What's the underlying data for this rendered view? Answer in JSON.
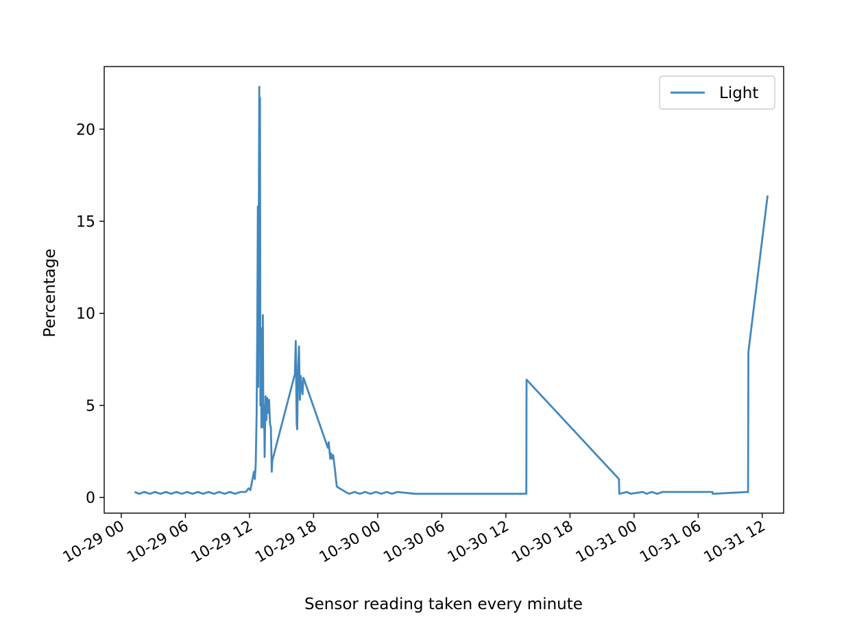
{
  "chart_data": {
    "type": "line",
    "title": "",
    "xlabel": "Sensor reading taken every minute",
    "ylabel": "Percentage",
    "xlim": [
      "2023-10-28 22:24",
      "2023-10-31 14:00"
    ],
    "ylim": [
      -0.85,
      23.4
    ],
    "grid": false,
    "legend": {
      "position": "top-right"
    },
    "xticks": [
      {
        "x": "2023-10-29 00:00",
        "label": "10-29 00"
      },
      {
        "x": "2023-10-29 06:00",
        "label": "10-29 06"
      },
      {
        "x": "2023-10-29 12:00",
        "label": "10-29 12"
      },
      {
        "x": "2023-10-29 18:00",
        "label": "10-29 18"
      },
      {
        "x": "2023-10-30 00:00",
        "label": "10-30 00"
      },
      {
        "x": "2023-10-30 06:00",
        "label": "10-30 06"
      },
      {
        "x": "2023-10-30 12:00",
        "label": "10-30 12"
      },
      {
        "x": "2023-10-30 18:00",
        "label": "10-30 18"
      },
      {
        "x": "2023-10-31 00:00",
        "label": "10-31 00"
      },
      {
        "x": "2023-10-31 06:00",
        "label": "10-31 06"
      },
      {
        "x": "2023-10-31 12:00",
        "label": "10-31 12"
      }
    ],
    "yticks": [
      {
        "y": 0,
        "label": "0"
      },
      {
        "y": 5,
        "label": "5"
      },
      {
        "y": 10,
        "label": "10"
      },
      {
        "y": 15,
        "label": "15"
      },
      {
        "y": 20,
        "label": "20"
      }
    ],
    "series": [
      {
        "name": "Light",
        "color": "#4287bd",
        "points": [
          [
            "2023-10-29 01:15",
            0.3
          ],
          [
            "2023-10-29 01:40",
            0.2
          ],
          [
            "2023-10-29 02:10",
            0.3
          ],
          [
            "2023-10-29 02:40",
            0.2
          ],
          [
            "2023-10-29 03:10",
            0.3
          ],
          [
            "2023-10-29 03:40",
            0.2
          ],
          [
            "2023-10-29 04:10",
            0.3
          ],
          [
            "2023-10-29 04:40",
            0.2
          ],
          [
            "2023-10-29 05:10",
            0.3
          ],
          [
            "2023-10-29 05:40",
            0.2
          ],
          [
            "2023-10-29 06:10",
            0.3
          ],
          [
            "2023-10-29 06:40",
            0.2
          ],
          [
            "2023-10-29 07:10",
            0.3
          ],
          [
            "2023-10-29 07:40",
            0.2
          ],
          [
            "2023-10-29 08:10",
            0.3
          ],
          [
            "2023-10-29 08:40",
            0.2
          ],
          [
            "2023-10-29 09:10",
            0.3
          ],
          [
            "2023-10-29 09:40",
            0.2
          ],
          [
            "2023-10-29 10:10",
            0.3
          ],
          [
            "2023-10-29 10:40",
            0.2
          ],
          [
            "2023-10-29 11:10",
            0.3
          ],
          [
            "2023-10-29 11:40",
            0.3
          ],
          [
            "2023-10-29 11:55",
            0.5
          ],
          [
            "2023-10-29 12:05",
            0.4
          ],
          [
            "2023-10-29 12:15",
            0.9
          ],
          [
            "2023-10-29 12:25",
            1.4
          ],
          [
            "2023-10-29 12:30",
            1.0
          ],
          [
            "2023-10-29 12:35",
            1.8
          ],
          [
            "2023-10-29 12:40",
            4.5
          ],
          [
            "2023-10-29 12:44",
            9.5
          ],
          [
            "2023-10-29 12:47",
            15.8
          ],
          [
            "2023-10-29 12:49",
            6.0
          ],
          [
            "2023-10-29 12:51",
            11.0
          ],
          [
            "2023-10-29 12:53",
            17.5
          ],
          [
            "2023-10-29 12:55",
            22.3
          ],
          [
            "2023-10-29 12:57",
            8.0
          ],
          [
            "2023-10-29 12:59",
            21.7
          ],
          [
            "2023-10-29 13:01",
            5.0
          ],
          [
            "2023-10-29 13:04",
            9.2
          ],
          [
            "2023-10-29 13:07",
            3.8
          ],
          [
            "2023-10-29 13:09",
            5.5
          ],
          [
            "2023-10-29 13:12",
            4.5
          ],
          [
            "2023-10-29 13:15",
            9.9
          ],
          [
            "2023-10-29 13:18",
            3.8
          ],
          [
            "2023-10-29 13:22",
            5.0
          ],
          [
            "2023-10-29 13:25",
            2.2
          ],
          [
            "2023-10-29 13:30",
            5.5
          ],
          [
            "2023-10-29 13:35",
            4.2
          ],
          [
            "2023-10-29 13:40",
            5.4
          ],
          [
            "2023-10-29 13:45",
            4.6
          ],
          [
            "2023-10-29 13:50",
            5.3
          ],
          [
            "2023-10-29 13:55",
            4.0
          ],
          [
            "2023-10-29 14:00",
            3.8
          ],
          [
            "2023-10-29 14:05",
            1.4
          ],
          [
            "2023-10-29 14:08",
            2.0
          ],
          [
            "2023-10-29 16:15",
            6.7
          ],
          [
            "2023-10-29 16:20",
            8.5
          ],
          [
            "2023-10-29 16:25",
            4.0
          ],
          [
            "2023-10-29 16:28",
            3.7
          ],
          [
            "2023-10-29 16:33",
            7.1
          ],
          [
            "2023-10-29 16:38",
            8.2
          ],
          [
            "2023-10-29 16:43",
            5.3
          ],
          [
            "2023-10-29 16:48",
            6.6
          ],
          [
            "2023-10-29 16:53",
            6.0
          ],
          [
            "2023-10-29 16:58",
            5.6
          ],
          [
            "2023-10-29 17:03",
            6.5
          ],
          [
            "2023-10-29 19:20",
            2.7
          ],
          [
            "2023-10-29 19:25",
            3.0
          ],
          [
            "2023-10-29 19:33",
            2.1
          ],
          [
            "2023-10-29 19:38",
            2.4
          ],
          [
            "2023-10-29 19:45",
            2.1
          ],
          [
            "2023-10-29 19:50",
            2.3
          ],
          [
            "2023-10-29 20:00",
            1.5
          ],
          [
            "2023-10-29 20:10",
            0.6
          ],
          [
            "2023-10-29 20:25",
            0.5
          ],
          [
            "2023-10-29 21:00",
            0.3
          ],
          [
            "2023-10-29 21:20",
            0.2
          ],
          [
            "2023-10-29 21:50",
            0.3
          ],
          [
            "2023-10-29 22:20",
            0.2
          ],
          [
            "2023-10-29 22:50",
            0.3
          ],
          [
            "2023-10-29 23:20",
            0.2
          ],
          [
            "2023-10-29 23:50",
            0.3
          ],
          [
            "2023-10-30 00:20",
            0.2
          ],
          [
            "2023-10-30 00:50",
            0.3
          ],
          [
            "2023-10-30 01:20",
            0.2
          ],
          [
            "2023-10-30 01:50",
            0.3
          ],
          [
            "2023-10-30 03:30",
            0.2
          ],
          [
            "2023-10-30 13:55",
            0.2
          ],
          [
            "2023-10-30 13:56",
            6.4
          ],
          [
            "2023-10-30 22:35",
            1.0
          ],
          [
            "2023-10-30 22:37",
            0.2
          ],
          [
            "2023-10-30 23:20",
            0.3
          ],
          [
            "2023-10-30 23:40",
            0.2
          ],
          [
            "2023-10-31 00:50",
            0.3
          ],
          [
            "2023-10-31 01:10",
            0.2
          ],
          [
            "2023-10-31 01:40",
            0.3
          ],
          [
            "2023-10-31 02:10",
            0.2
          ],
          [
            "2023-10-31 02:40",
            0.3
          ],
          [
            "2023-10-31 07:20",
            0.3
          ],
          [
            "2023-10-31 07:22",
            0.2
          ],
          [
            "2023-10-31 10:40",
            0.3
          ],
          [
            "2023-10-31 10:42",
            7.9
          ],
          [
            "2023-10-31 12:30",
            16.4
          ]
        ]
      }
    ]
  }
}
